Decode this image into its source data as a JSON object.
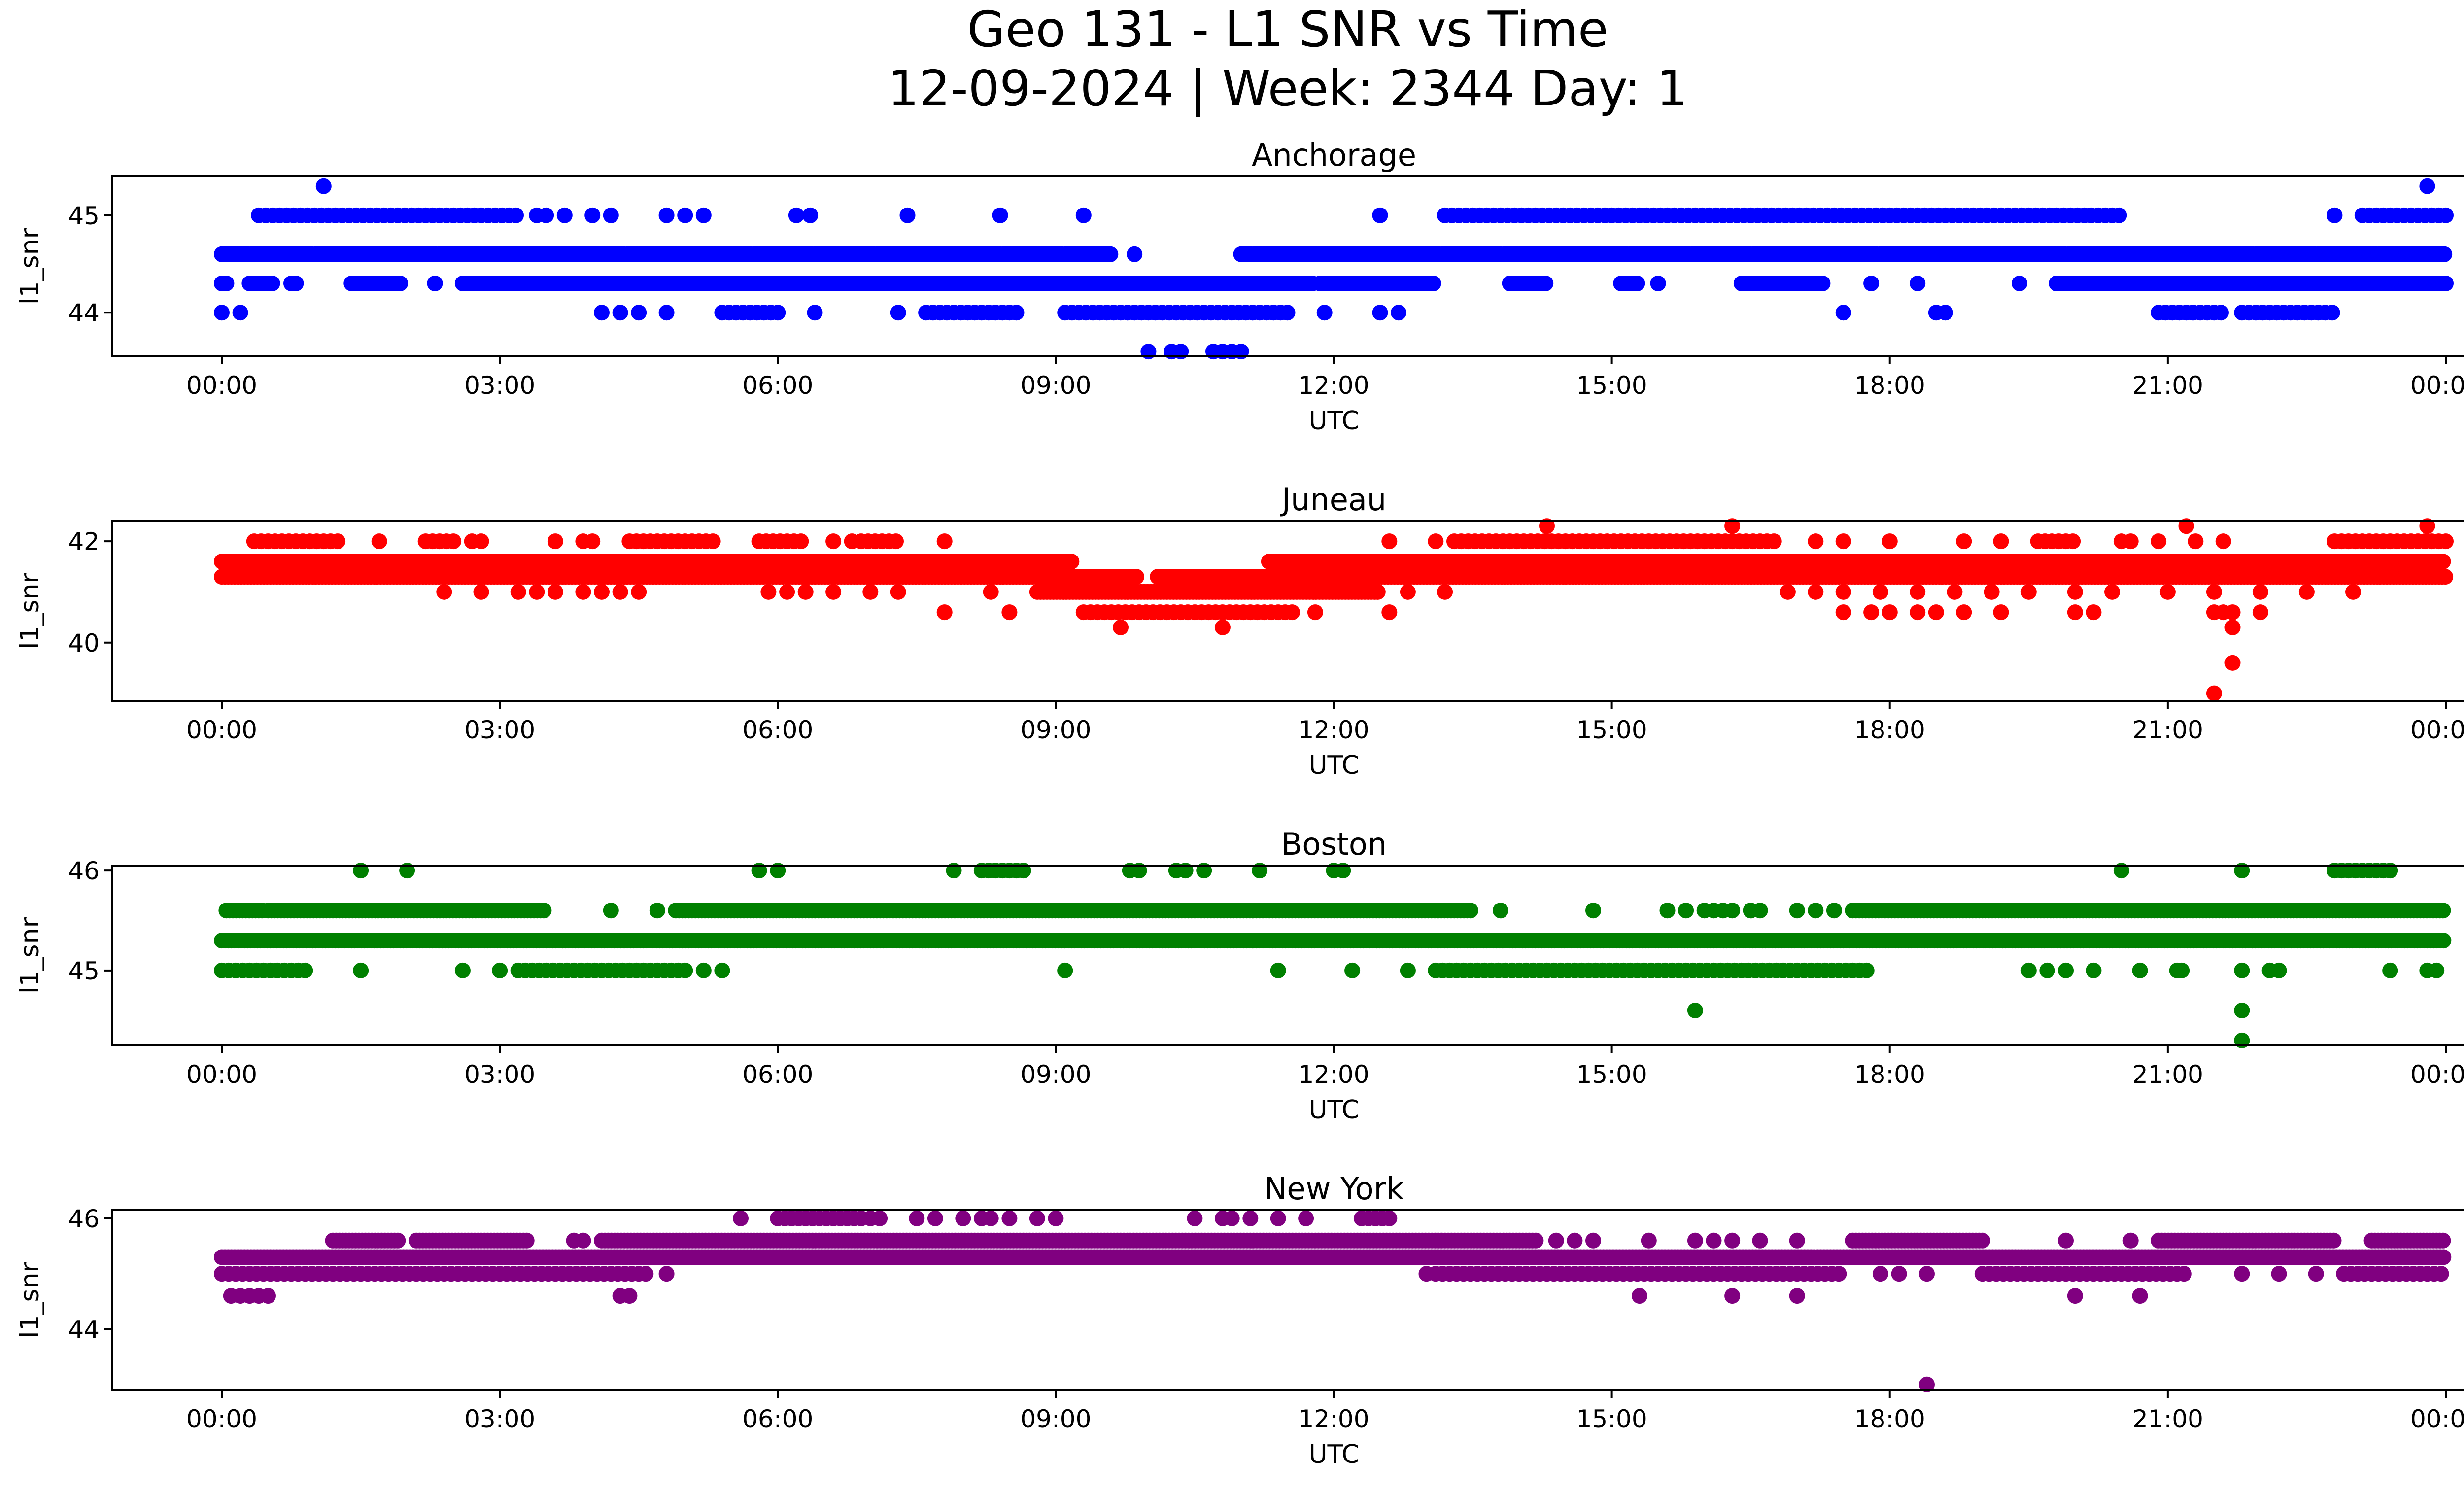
{
  "figure": {
    "title_line1": "Geo 131 - L1 SNR vs Time",
    "title_line2": "12-09-2024 | Week: 2344 Day: 1"
  },
  "chart_data": [
    {
      "type": "scatter",
      "title": "Anchorage",
      "xlabel": "UTC",
      "ylabel": "l1_snr",
      "color": "#0000ff",
      "xticks": [
        "00:00",
        "03:00",
        "06:00",
        "09:00",
        "12:00",
        "15:00",
        "18:00",
        "21:00",
        "00:00"
      ],
      "xlim_hours": [
        -1.2,
        25.2
      ],
      "yticks": [
        44,
        45
      ],
      "ylim": [
        43.55,
        45.4
      ],
      "levels": [
        {
          "y": 44.6,
          "dense": true,
          "ranges": [
            [
              0.0,
              9.6
            ],
            [
              11.0,
              24.0
            ]
          ],
          "points": [
            9.85
          ]
        },
        {
          "y": 44.3,
          "dense": true,
          "ranges": [
            [
              0.3,
              0.55
            ],
            [
              1.4,
              1.95
            ],
            [
              2.6,
              11.8
            ],
            [
              11.85,
              13.1
            ],
            [
              13.9,
              14.3
            ],
            [
              15.1,
              15.3
            ],
            [
              16.4,
              17.3
            ],
            [
              19.8,
              24.0
            ]
          ],
          "points": [
            0.0,
            0.05,
            0.75,
            0.8,
            2.3,
            14.0,
            15.5,
            17.8,
            18.3,
            19.4
          ]
        },
        {
          "y": 45.0,
          "dense": false,
          "ranges": [
            [
              0.4,
              3.2
            ],
            [
              13.2,
              20.5
            ],
            [
              23.1,
              24.0
            ]
          ],
          "points": [
            3.4,
            3.5,
            3.7,
            4.0,
            4.2,
            4.8,
            5.0,
            5.2,
            6.2,
            6.35,
            7.4,
            8.4,
            9.3,
            12.5,
            22.8
          ]
        },
        {
          "y": 44.0,
          "dense": false,
          "ranges": [
            [
              5.4,
              6.0
            ],
            [
              7.6,
              8.6
            ],
            [
              9.1,
              11.5
            ],
            [
              20.9,
              21.6
            ],
            [
              21.8,
              22.8
            ]
          ],
          "points": [
            0.0,
            0.2,
            4.1,
            4.3,
            4.5,
            4.8,
            6.4,
            7.3,
            11.9,
            12.5,
            12.7,
            17.5,
            18.5,
            18.6
          ]
        },
        {
          "y": 43.6,
          "dense": false,
          "ranges": [],
          "points": [
            10.0,
            10.25,
            10.35,
            10.7,
            10.8,
            10.9,
            11.0
          ]
        },
        {
          "y": 45.3,
          "dense": false,
          "ranges": [],
          "points": [
            1.1,
            23.8
          ]
        }
      ]
    },
    {
      "type": "scatter",
      "title": "Juneau",
      "xlabel": "UTC",
      "ylabel": "l1_snr",
      "color": "#ff0000",
      "xticks": [
        "00:00",
        "03:00",
        "06:00",
        "09:00",
        "12:00",
        "15:00",
        "18:00",
        "21:00",
        "00:00"
      ],
      "xlim_hours": [
        -1.2,
        25.2
      ],
      "yticks": [
        40,
        42
      ],
      "ylim": [
        38.85,
        42.4
      ],
      "levels": [
        {
          "y": 41.6,
          "dense": true,
          "ranges": [
            [
              0.0,
              9.2
            ],
            [
              11.3,
              24.0
            ]
          ],
          "points": []
        },
        {
          "y": 41.3,
          "dense": true,
          "ranges": [
            [
              0.0,
              9.9
            ],
            [
              10.1,
              24.0
            ]
          ],
          "points": []
        },
        {
          "y": 41.0,
          "dense": true,
          "ranges": [
            [
              8.8,
              12.5
            ]
          ],
          "points": [
            2.4,
            2.8,
            3.2,
            3.4,
            3.6,
            3.9,
            4.1,
            4.3,
            4.5,
            5.9,
            6.1,
            6.3,
            6.6,
            7.0,
            7.3,
            8.3,
            12.8,
            13.2,
            16.9,
            17.2,
            17.5,
            17.9,
            18.3,
            18.7,
            19.1,
            19.5,
            20.0,
            20.4,
            21.0,
            21.5,
            22.0,
            22.5,
            23.0
          ]
        },
        {
          "y": 42.0,
          "dense": false,
          "ranges": [
            [
              0.35,
              1.3
            ],
            [
              2.2,
              2.5
            ],
            [
              4.4,
              5.3
            ],
            [
              5.8,
              6.3
            ],
            [
              6.9,
              7.3
            ],
            [
              13.3,
              16.8
            ],
            [
              19.6,
              20.0
            ],
            [
              22.8,
              24.0
            ]
          ],
          "points": [
            1.7,
            2.7,
            2.8,
            3.6,
            3.9,
            4.0,
            6.6,
            6.8,
            7.8,
            12.6,
            13.1,
            17.2,
            17.5,
            18.0,
            18.8,
            19.2,
            20.5,
            20.6,
            20.9,
            21.3,
            21.6
          ]
        },
        {
          "y": 40.6,
          "dense": false,
          "ranges": [
            [
              9.3,
              11.6
            ]
          ],
          "points": [
            7.8,
            8.5,
            11.8,
            12.6,
            17.5,
            17.8,
            18.0,
            18.3,
            18.5,
            18.8,
            19.2,
            20.0,
            20.2,
            21.5,
            21.6,
            21.7,
            22.0
          ]
        },
        {
          "y": 42.3,
          "dense": false,
          "ranges": [],
          "points": [
            14.3,
            16.3,
            21.2,
            23.8
          ]
        },
        {
          "y": 40.3,
          "dense": false,
          "ranges": [],
          "points": [
            9.7,
            10.8,
            21.7
          ]
        },
        {
          "y": 39.6,
          "dense": false,
          "ranges": [],
          "points": [
            21.7
          ]
        },
        {
          "y": 39.0,
          "dense": false,
          "ranges": [],
          "points": [
            21.5
          ]
        }
      ]
    },
    {
      "type": "scatter",
      "title": "Boston",
      "xlabel": "UTC",
      "ylabel": "l1_snr",
      "color": "#008000",
      "xticks": [
        "00:00",
        "03:00",
        "06:00",
        "09:00",
        "12:00",
        "15:00",
        "18:00",
        "21:00",
        "00:00"
      ],
      "xlim_hours": [
        -1.2,
        25.2
      ],
      "yticks": [
        45,
        46
      ],
      "ylim": [
        44.25,
        46.05
      ],
      "levels": [
        {
          "y": 45.3,
          "dense": true,
          "ranges": [
            [
              0.0,
              24.0
            ]
          ],
          "points": []
        },
        {
          "y": 45.6,
          "dense": true,
          "ranges": [
            [
              0.05,
              0.45
            ],
            [
              0.5,
              3.5
            ],
            [
              4.9,
              13.5
            ],
            [
              17.6,
              24.0
            ]
          ],
          "points": [
            4.2,
            4.7,
            13.8,
            14.8,
            15.6,
            15.8,
            16.0,
            16.1,
            16.2,
            16.3,
            16.5,
            16.6,
            17.0,
            17.2,
            17.4
          ]
        },
        {
          "y": 45.0,
          "dense": false,
          "ranges": [
            [
              0.0,
              0.95
            ],
            [
              3.2,
              5.0
            ],
            [
              13.1,
              17.8
            ]
          ],
          "points": [
            1.5,
            2.6,
            3.0,
            5.2,
            5.4,
            9.1,
            11.4,
            12.2,
            12.8,
            19.5,
            19.7,
            19.9,
            20.2,
            20.7,
            21.1,
            21.15,
            21.8,
            22.1,
            22.2,
            23.4,
            23.8,
            23.9
          ]
        },
        {
          "y": 46.0,
          "dense": false,
          "ranges": [
            [
              8.2,
              8.7
            ],
            [
              22.8,
              23.4
            ]
          ],
          "points": [
            1.5,
            2.0,
            5.8,
            6.0,
            7.9,
            9.8,
            9.9,
            10.3,
            10.4,
            10.6,
            11.2,
            12.0,
            12.1,
            20.5,
            21.8
          ]
        },
        {
          "y": 44.6,
          "dense": false,
          "ranges": [],
          "points": [
            15.9,
            21.8
          ]
        },
        {
          "y": 44.3,
          "dense": false,
          "ranges": [],
          "points": [
            21.8
          ]
        }
      ]
    },
    {
      "type": "scatter",
      "title": "New York",
      "xlabel": "UTC",
      "ylabel": "l1_snr",
      "color": "#800080",
      "xticks": [
        "00:00",
        "03:00",
        "06:00",
        "09:00",
        "12:00",
        "15:00",
        "18:00",
        "21:00",
        "00:00"
      ],
      "xlim_hours": [
        -1.2,
        25.2
      ],
      "yticks": [
        44,
        46
      ],
      "ylim": [
        42.9,
        46.15
      ],
      "levels": [
        {
          "y": 45.3,
          "dense": true,
          "ranges": [
            [
              0.0,
              24.0
            ]
          ],
          "points": []
        },
        {
          "y": 45.6,
          "dense": true,
          "ranges": [
            [
              1.2,
              1.9
            ],
            [
              2.1,
              3.3
            ],
            [
              4.1,
              14.2
            ],
            [
              17.6,
              19.0
            ],
            [
              20.9,
              22.8
            ],
            [
              23.2,
              24.0
            ]
          ],
          "points": [
            3.8,
            3.9,
            14.4,
            14.6,
            14.8,
            15.4,
            15.9,
            16.1,
            16.3,
            16.6,
            17.0,
            19.9,
            20.6
          ]
        },
        {
          "y": 45.0,
          "dense": false,
          "ranges": [
            [
              0.0,
              4.6
            ],
            [
              13.1,
              17.5
            ],
            [
              19.0,
              21.2
            ],
            [
              22.9,
              24.0
            ]
          ],
          "points": [
            4.8,
            13.0,
            17.9,
            18.1,
            18.4,
            21.8,
            22.2,
            22.6
          ]
        },
        {
          "y": 46.0,
          "dense": false,
          "ranges": [
            [
              6.0,
              6.9
            ],
            [
              12.3,
              12.6
            ]
          ],
          "points": [
            5.6,
            7.0,
            7.1,
            7.5,
            7.7,
            8.0,
            8.2,
            8.3,
            8.5,
            8.8,
            9.0,
            10.5,
            10.8,
            10.9,
            11.1,
            11.4,
            11.7
          ]
        },
        {
          "y": 44.6,
          "dense": false,
          "ranges": [],
          "points": [
            0.1,
            0.2,
            0.3,
            0.4,
            0.5,
            4.3,
            4.4,
            15.3,
            16.3,
            17.0,
            20.0,
            20.7
          ]
        },
        {
          "y": 43.0,
          "dense": false,
          "ranges": [],
          "points": [
            18.4
          ]
        }
      ]
    }
  ]
}
